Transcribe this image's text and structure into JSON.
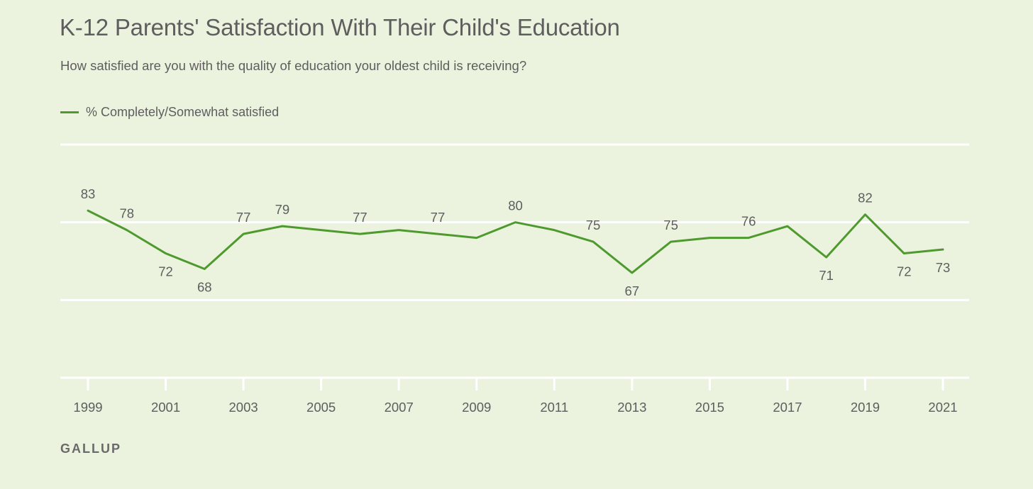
{
  "chart_data": {
    "type": "line",
    "title": "K-12 Parents' Satisfaction With Their Child's Education",
    "subtitle": "How satisfied are you with the quality of education your oldest child is receiving?",
    "xlabel": "",
    "ylabel": "",
    "ylim": [
      40,
      100
    ],
    "y_gridlines": [
      40,
      60,
      80,
      100
    ],
    "x_ticks": [
      1999,
      2001,
      2003,
      2005,
      2007,
      2009,
      2011,
      2013,
      2015,
      2017,
      2019,
      2021
    ],
    "xlim": [
      1999,
      2021
    ],
    "series": [
      {
        "name": "% Completely/Somewhat satisfied",
        "color": "#4f9a2f",
        "x": [
          1999,
          2000,
          2001,
          2002,
          2003,
          2004,
          2005,
          2006,
          2007,
          2008,
          2009,
          2010,
          2011,
          2012,
          2013,
          2014,
          2015,
          2016,
          2017,
          2018,
          2019,
          2020,
          2021
        ],
        "values": [
          83,
          78,
          72,
          68,
          77,
          79,
          78,
          77,
          78,
          77,
          76,
          80,
          78,
          75,
          67,
          75,
          76,
          76,
          79,
          71,
          82,
          72,
          73
        ]
      }
    ],
    "data_labels": [
      {
        "year": 1999,
        "text": "83",
        "pos": "above"
      },
      {
        "year": 2000,
        "text": "78",
        "pos": "above"
      },
      {
        "year": 2001,
        "text": "72",
        "pos": "below"
      },
      {
        "year": 2002,
        "text": "68",
        "pos": "below"
      },
      {
        "year": 2003,
        "text": "77",
        "pos": "above"
      },
      {
        "year": 2004,
        "text": "79",
        "pos": "above"
      },
      {
        "year": 2006,
        "text": "77",
        "pos": "above"
      },
      {
        "year": 2008,
        "text": "77",
        "pos": "above"
      },
      {
        "year": 2010,
        "text": "80",
        "pos": "above"
      },
      {
        "year": 2012,
        "text": "75",
        "pos": "above"
      },
      {
        "year": 2013,
        "text": "67",
        "pos": "below"
      },
      {
        "year": 2014,
        "text": "75",
        "pos": "above"
      },
      {
        "year": 2016,
        "text": "76",
        "pos": "above"
      },
      {
        "year": 2018,
        "text": "71",
        "pos": "below"
      },
      {
        "year": 2019,
        "text": "82",
        "pos": "above"
      },
      {
        "year": 2020,
        "text": "72",
        "pos": "below"
      },
      {
        "year": 2021,
        "text": "73",
        "pos": "below"
      }
    ],
    "legend_position": "top-left"
  },
  "source": "GALLUP",
  "colors": {
    "background": "#ebf3df",
    "line": "#4f9a2f",
    "grid": "#ffffff",
    "text": "#5e5e5e"
  }
}
